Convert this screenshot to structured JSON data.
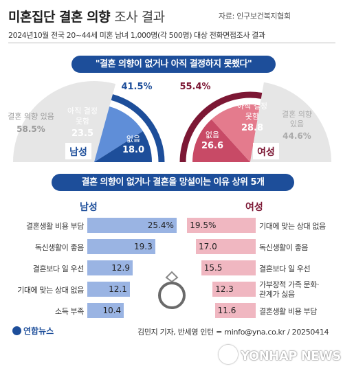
{
  "header": {
    "title_bold": "미혼집단 결혼 의향",
    "title_light": "조사 결과",
    "source": "자료: 인구보건복지협회",
    "subtitle": "2024년10월 전국 20~44세 미혼 남녀 1,000명(각 500명) 대상 전화면접조사 결과"
  },
  "chart_data": [
    {
      "type": "pie",
      "title": "\"결혼 의향이 없거나 아직 결정하지 못했다\"",
      "groups": [
        {
          "name": "남성",
          "highlight_total": "41.5%",
          "slices": [
            {
              "label": "결혼 의향 있음",
              "value": 58.5
            },
            {
              "label": "아직 결정 못함",
              "value": 23.5
            },
            {
              "label": "없음",
              "value": 18.0
            }
          ]
        },
        {
          "name": "여성",
          "highlight_total": "55.4%",
          "slices": [
            {
              "label": "결혼 의향 있음",
              "value": 44.6
            },
            {
              "label": "아직 결정 못함",
              "value": 28.8
            },
            {
              "label": "없음",
              "value": 26.6
            }
          ]
        }
      ]
    },
    {
      "type": "bar",
      "title": "결혼 의향이 없거나 결혼을 망설이는 이유 상위 5개",
      "series": [
        {
          "name": "남성",
          "categories": [
            "결혼생활 비용 부담",
            "독신생활이 좋음",
            "결혼보다 일 우선",
            "기대에 맞는 상대 없음",
            "소득 부족"
          ],
          "values": [
            25.4,
            19.3,
            12.9,
            12.1,
            10.4
          ],
          "value_labels": [
            "25.4%",
            "19.3",
            "12.9",
            "12.1",
            "10.4"
          ]
        },
        {
          "name": "여성",
          "categories": [
            "기대에 맞는 상대 없음",
            "독신생활이 좋음",
            "결혼보다 일 우선",
            "가부장적 가족 문화·관계가 싫음",
            "결혼생활 비용 부담"
          ],
          "values": [
            19.5,
            17.0,
            15.5,
            12.3,
            11.6
          ],
          "value_labels": [
            "19.5%",
            "17.0",
            "15.5",
            "12.3",
            "11.6"
          ]
        }
      ]
    }
  ],
  "colors": {
    "navy": "#1d4e9a",
    "male_light": "#5f8ed8",
    "male_bar": "#9ab4e3",
    "wine": "#7c1734",
    "female_mid": "#c84a66",
    "female_light": "#e47b8d",
    "female_bar": "#f0b7c1",
    "gray": "#e6e6e6"
  },
  "footer": {
    "left_logo": "연합뉴스",
    "credit": "김민지 기자, 반세영 인턴 = minfo@yna.co.kr / 20250414",
    "right_logo": "YONHAP NEWS"
  }
}
